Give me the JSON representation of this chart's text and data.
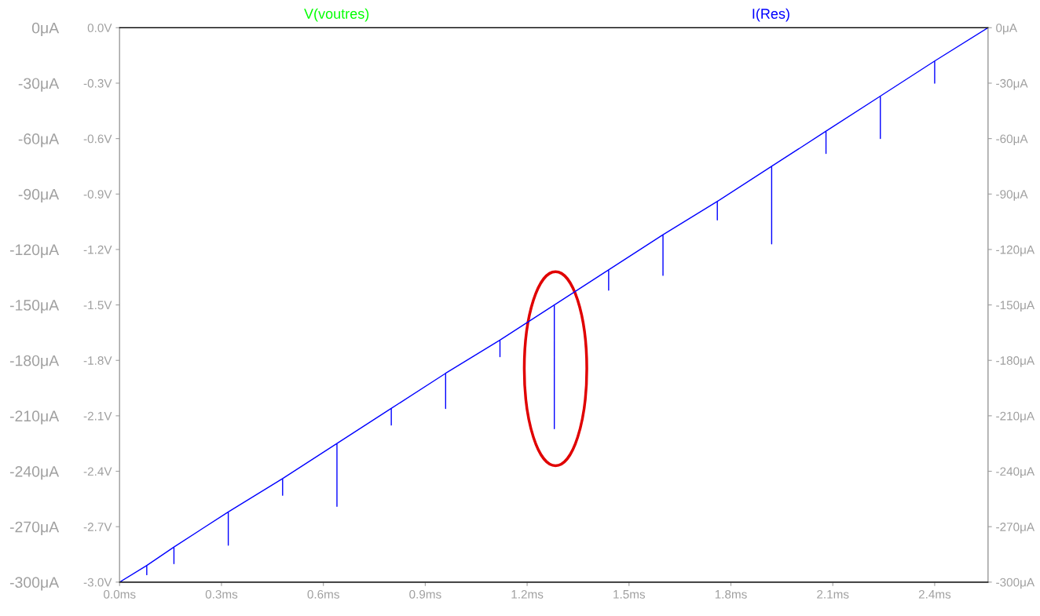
{
  "chart_data": {
    "type": "line",
    "legend": "top",
    "grid": false,
    "xlim": [
      0,
      2.557
    ],
    "xticks": [
      {
        "value": 0,
        "label": "0.0ms"
      },
      {
        "value": 0.3,
        "label": "0.3ms"
      },
      {
        "value": 0.6,
        "label": "0.6ms"
      },
      {
        "value": 0.9,
        "label": "0.9ms"
      },
      {
        "value": 1.2,
        "label": "1.2ms"
      },
      {
        "value": 1.5,
        "label": "1.5ms"
      },
      {
        "value": 1.8,
        "label": "1.8ms"
      },
      {
        "value": 2.1,
        "label": "2.1ms"
      },
      {
        "value": 2.4,
        "label": "2.4ms"
      }
    ],
    "ylim": [
      -3.0,
      0
    ],
    "yticks": [
      {
        "value": 0,
        "label": "0.0V"
      },
      {
        "value": -0.3,
        "label": "-0.3V"
      },
      {
        "value": -0.6,
        "label": "-0.6V"
      },
      {
        "value": -0.9,
        "label": "-0.9V"
      },
      {
        "value": -1.2,
        "label": "-1.2V"
      },
      {
        "value": -1.5,
        "label": "-1.5V"
      },
      {
        "value": -1.8,
        "label": "-1.8V"
      },
      {
        "value": -2.1,
        "label": "-2.1V"
      },
      {
        "value": -2.4,
        "label": "-2.4V"
      },
      {
        "value": -2.7,
        "label": "-2.7V"
      },
      {
        "value": -3.0,
        "label": "-3.0V"
      }
    ],
    "y2lim": [
      -300,
      0
    ],
    "y2ticks": [
      {
        "value": 0,
        "label": "0μA"
      },
      {
        "value": -30,
        "label": "-30μA"
      },
      {
        "value": -60,
        "label": "-60μA"
      },
      {
        "value": -90,
        "label": "-90μA"
      },
      {
        "value": -120,
        "label": "-120μA"
      },
      {
        "value": -150,
        "label": "-150μA"
      },
      {
        "value": -180,
        "label": "-180μA"
      },
      {
        "value": -210,
        "label": "-210μA"
      },
      {
        "value": -240,
        "label": "-240μA"
      },
      {
        "value": -270,
        "label": "-270μA"
      },
      {
        "value": -300,
        "label": "-300μA"
      }
    ],
    "y3lim": [
      -300,
      0
    ],
    "y3ticks": [
      {
        "value": 0,
        "label": "0μA"
      },
      {
        "value": -30,
        "label": "-30μA"
      },
      {
        "value": -60,
        "label": "-60μA"
      },
      {
        "value": -90,
        "label": "-90μA"
      },
      {
        "value": -120,
        "label": "-120μA"
      },
      {
        "value": -150,
        "label": "-150μA"
      },
      {
        "value": -180,
        "label": "-180μA"
      },
      {
        "value": -210,
        "label": "-210μA"
      },
      {
        "value": -240,
        "label": "-240μA"
      },
      {
        "value": -270,
        "label": "-270μA"
      },
      {
        "value": -300,
        "label": "-300μA"
      }
    ],
    "series": [
      {
        "name": "V(voutres)",
        "color": "#00ff00",
        "axis": "y"
      },
      {
        "name": "I(Res)",
        "color": "#0000ff",
        "axis": "y2",
        "x": [
          0,
          0.08,
          0.08,
          0.08,
          0.16,
          0.16,
          0.16,
          0.32,
          0.32,
          0.32,
          0.48,
          0.48,
          0.48,
          0.64,
          0.64,
          0.64,
          0.8,
          0.8,
          0.8,
          0.96,
          0.96,
          0.96,
          1.12,
          1.12,
          1.12,
          1.28,
          1.28,
          1.28,
          1.44,
          1.44,
          1.44,
          1.6,
          1.6,
          1.6,
          1.76,
          1.76,
          1.76,
          1.92,
          1.92,
          1.92,
          2.08,
          2.08,
          2.08,
          2.24,
          2.24,
          2.24,
          2.4,
          2.4,
          2.4,
          2.557
        ],
        "values": [
          -300,
          -291,
          -296,
          -291,
          -281,
          -290,
          -281,
          -262,
          -280,
          -262,
          -244,
          -253,
          -244,
          -225,
          -259,
          -225,
          -206,
          -215,
          -206,
          -187,
          -206,
          -187,
          -169,
          -178,
          -169,
          -150,
          -217,
          -150,
          -131,
          -142,
          -131,
          -112,
          -134,
          -112,
          -94,
          -104,
          -94,
          -75,
          -117,
          -75,
          -56,
          -68,
          -56,
          -37,
          -60,
          -37,
          -18,
          -30,
          -18,
          0
        ]
      }
    ]
  }
}
